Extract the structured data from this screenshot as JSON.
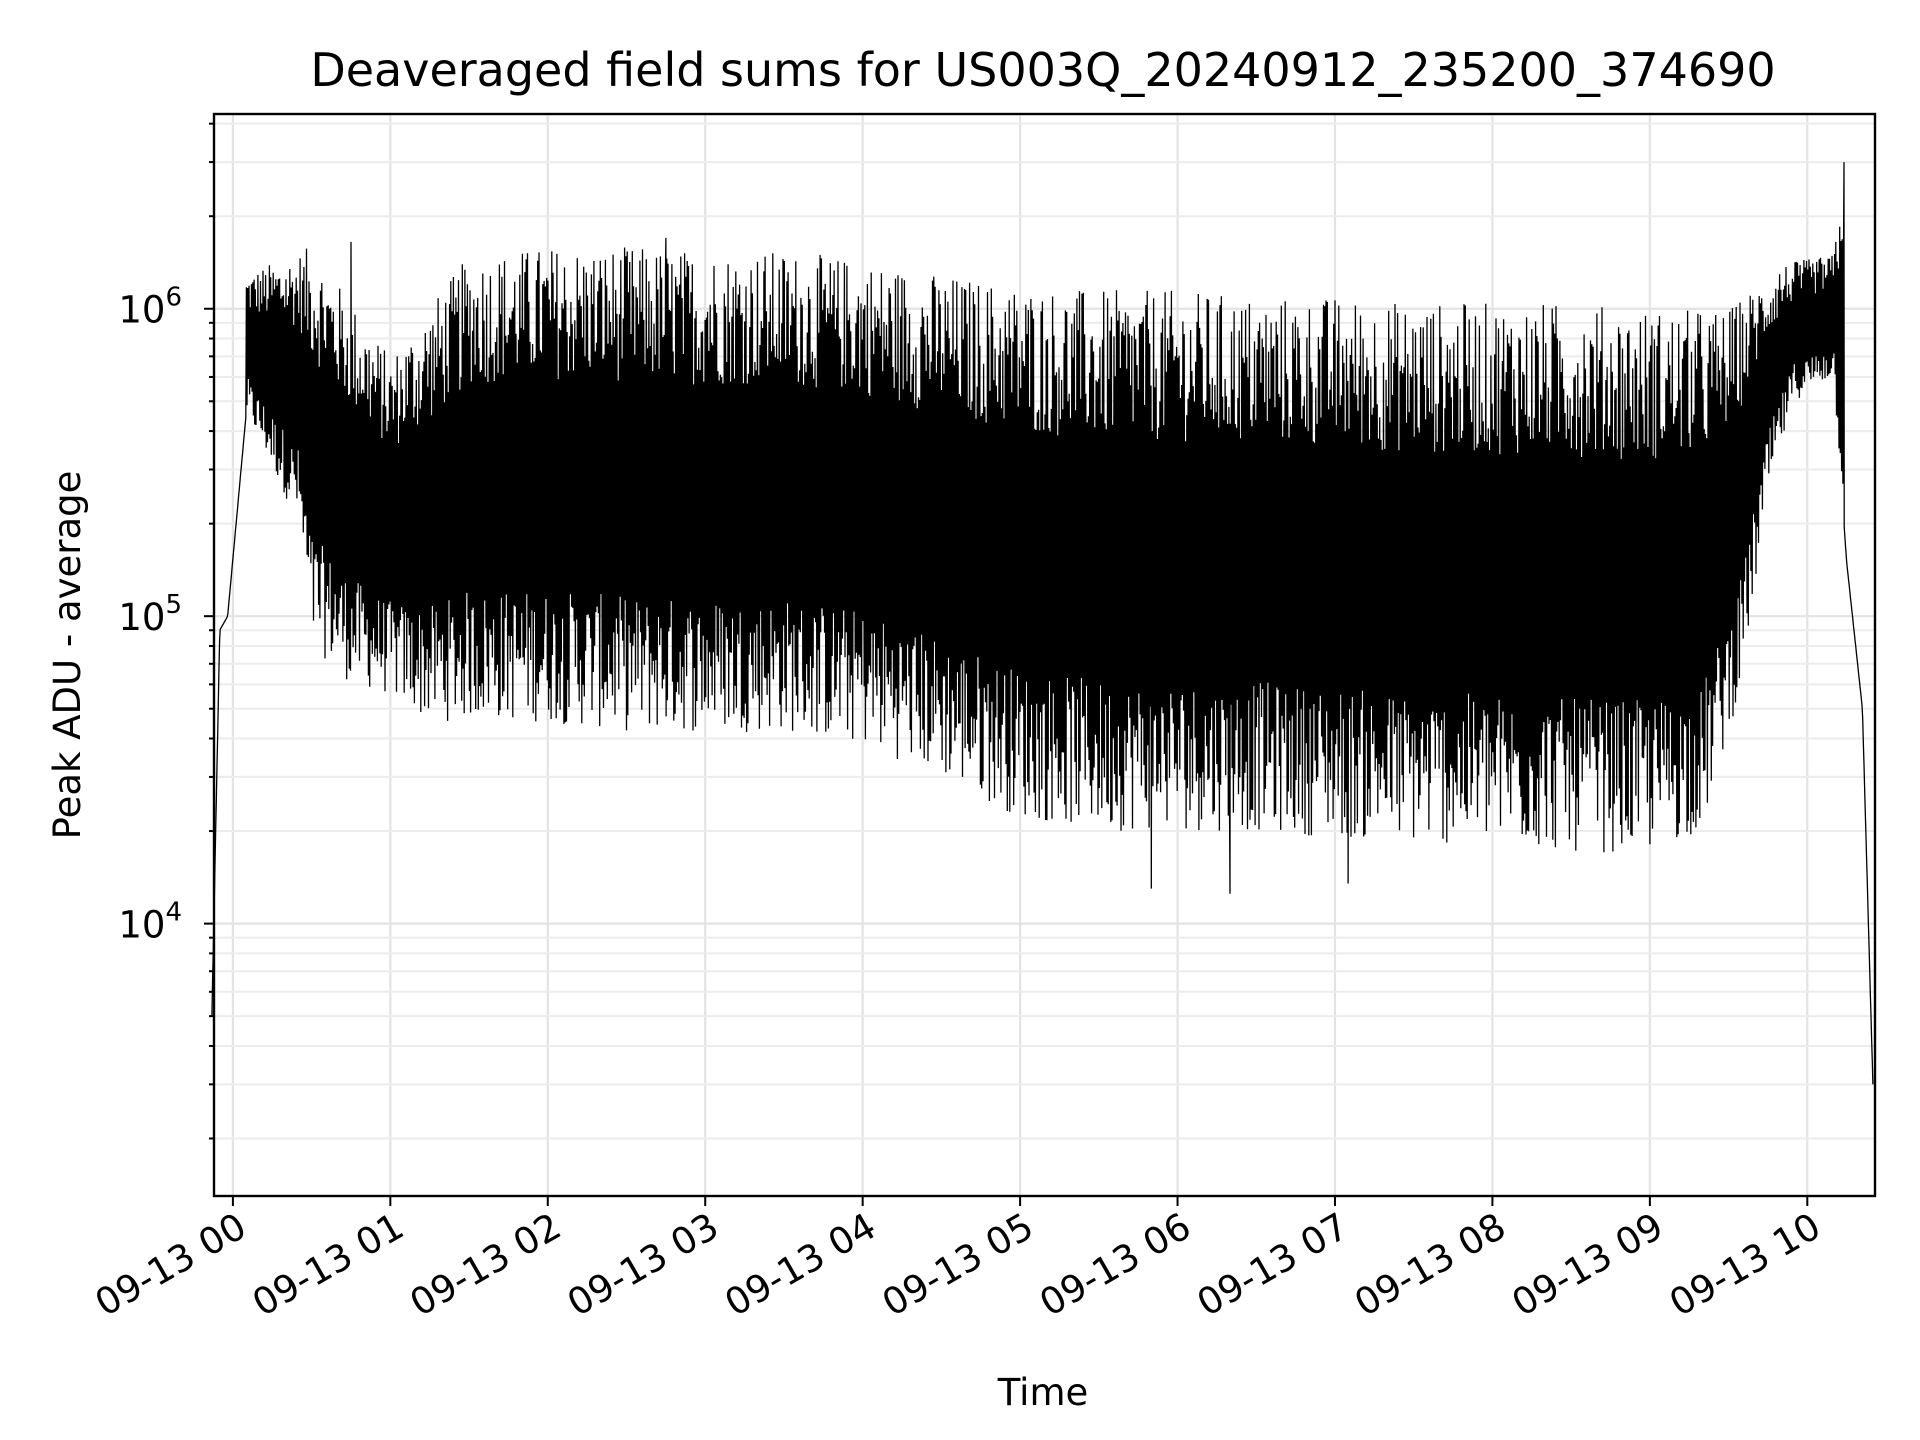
{
  "chart_data": {
    "type": "line",
    "title": "Deaveraged field sums for US003Q_20240912_235200_374690",
    "xlabel": "Time",
    "ylabel": "Peak ADU - average",
    "yscale": "log",
    "xlim_hours": [
      -0.12,
      10.43
    ],
    "ylim": [
      1300,
      4300000
    ],
    "grid": true,
    "legend": "none",
    "line_color": "#000000",
    "x_ticks": [
      {
        "hour": 0,
        "label": "09-13 00"
      },
      {
        "hour": 1,
        "label": "09-13 01"
      },
      {
        "hour": 2,
        "label": "09-13 02"
      },
      {
        "hour": 3,
        "label": "09-13 03"
      },
      {
        "hour": 4,
        "label": "09-13 04"
      },
      {
        "hour": 5,
        "label": "09-13 05"
      },
      {
        "hour": 6,
        "label": "09-13 06"
      },
      {
        "hour": 7,
        "label": "09-13 07"
      },
      {
        "hour": 8,
        "label": "09-13 08"
      },
      {
        "hour": 9,
        "label": "09-13 09"
      },
      {
        "hour": 10,
        "label": "09-13 10"
      }
    ],
    "y_ticks": [
      {
        "value": 10000,
        "base": "10",
        "exp": "4"
      },
      {
        "value": 100000,
        "base": "10",
        "exp": "5"
      },
      {
        "value": 1000000,
        "base": "10",
        "exp": "6"
      }
    ],
    "series": [
      {
        "envelope_min": [
          {
            "time": "09-12 23:52",
            "value": 5000
          },
          {
            "time": "09-12 23:55",
            "value": 90000
          },
          {
            "time": "09-12 23:58",
            "value": 100000
          },
          {
            "time": "09-13 00:05",
            "value": 450000
          },
          {
            "time": "09-13 00:15",
            "value": 300000
          },
          {
            "time": "09-13 00:25",
            "value": 200000
          },
          {
            "time": "09-13 00:30",
            "value": 80000
          },
          {
            "time": "09-13 00:45",
            "value": 60000
          },
          {
            "time": "09-13 01:00",
            "value": 55000
          },
          {
            "time": "09-13 01:15",
            "value": 45000
          },
          {
            "time": "09-13 01:30",
            "value": 46000
          },
          {
            "time": "09-13 02:00",
            "value": 45000
          },
          {
            "time": "09-13 02:30",
            "value": 42000
          },
          {
            "time": "09-13 03:00",
            "value": 42000
          },
          {
            "time": "09-13 03:30",
            "value": 42000
          },
          {
            "time": "09-13 04:00",
            "value": 38000
          },
          {
            "time": "09-13 04:30",
            "value": 30000
          },
          {
            "time": "09-13 05:00",
            "value": 22000
          },
          {
            "time": "09-13 05:30",
            "value": 20000
          },
          {
            "time": "09-13 06:00",
            "value": 20000
          },
          {
            "time": "09-13 06:30",
            "value": 20000
          },
          {
            "time": "09-13 07:00",
            "value": 19000
          },
          {
            "time": "09-13 07:30",
            "value": 18000
          },
          {
            "time": "09-13 08:00",
            "value": 18000
          },
          {
            "time": "09-13 08:30",
            "value": 17000
          },
          {
            "time": "09-13 09:00",
            "value": 17000
          },
          {
            "time": "09-13 09:20",
            "value": 20000
          },
          {
            "time": "09-13 09:35",
            "value": 60000
          },
          {
            "time": "09-13 09:45",
            "value": 250000
          },
          {
            "time": "09-13 09:55",
            "value": 500000
          },
          {
            "time": "09-13 10:10",
            "value": 600000
          },
          {
            "time": "09-13 10:15",
            "value": 150000
          },
          {
            "time": "09-13 10:21",
            "value": 50000
          },
          {
            "time": "09-13 10:25",
            "value": 3000
          }
        ],
        "envelope_max": [
          {
            "time": "09-13 00:05",
            "value": 1300000
          },
          {
            "time": "09-13 00:30",
            "value": 1600000
          },
          {
            "time": "09-13 01:00",
            "value": 700000
          },
          {
            "time": "09-13 01:30",
            "value": 1500000
          },
          {
            "time": "09-13 02:00",
            "value": 1600000
          },
          {
            "time": "09-13 02:30",
            "value": 1600000
          },
          {
            "time": "09-13 03:00",
            "value": 1550000
          },
          {
            "time": "09-13 03:30",
            "value": 1550000
          },
          {
            "time": "09-13 04:00",
            "value": 1450000
          },
          {
            "time": "09-13 04:30",
            "value": 1300000
          },
          {
            "time": "09-13 05:00",
            "value": 1200000
          },
          {
            "time": "09-13 05:30",
            "value": 1150000
          },
          {
            "time": "09-13 06:00",
            "value": 1150000
          },
          {
            "time": "09-13 06:30",
            "value": 1100000
          },
          {
            "time": "09-13 07:00",
            "value": 1100000
          },
          {
            "time": "09-13 07:30",
            "value": 1050000
          },
          {
            "time": "09-13 08:00",
            "value": 1050000
          },
          {
            "time": "09-13 08:30",
            "value": 1050000
          },
          {
            "time": "09-13 09:00",
            "value": 1000000
          },
          {
            "time": "09-13 09:30",
            "value": 1000000
          },
          {
            "time": "09-13 09:50",
            "value": 1400000
          },
          {
            "time": "09-13 10:10",
            "value": 1500000
          },
          {
            "time": "09-13 10:14",
            "value": 3000000
          }
        ],
        "notable_points": [
          {
            "time": "09-13 00:45",
            "value": 1650000
          },
          {
            "time": "09-13 02:45",
            "value": 1700000
          },
          {
            "time": "09-13 05:50",
            "value": 13000
          },
          {
            "time": "09-13 06:20",
            "value": 12500
          },
          {
            "time": "09-13 07:05",
            "value": 13500
          },
          {
            "time": "09-13 10:14",
            "value": 3000000
          }
        ]
      }
    ]
  }
}
